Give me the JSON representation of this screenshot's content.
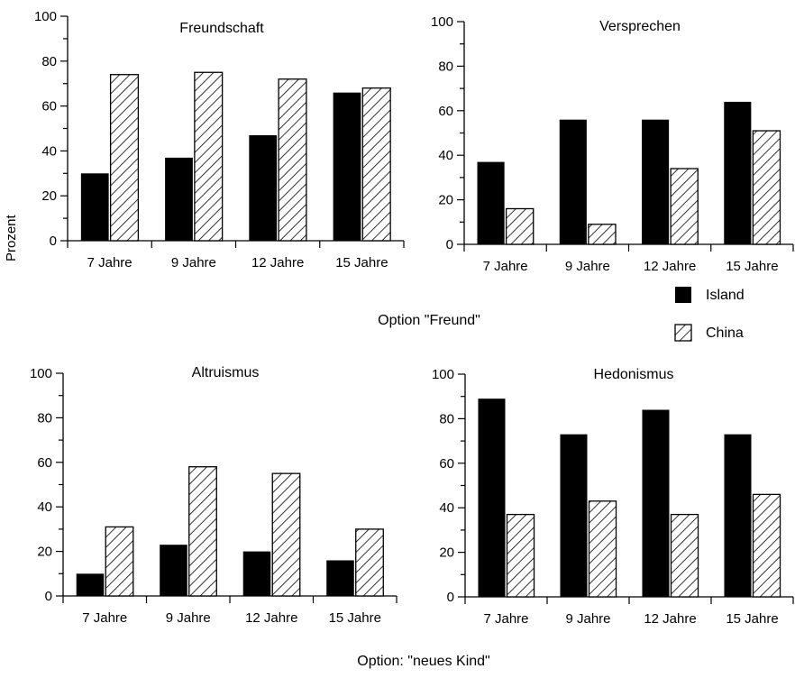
{
  "figure": {
    "ylabel": "Prozent",
    "caption_top": "Option \"Freund\"",
    "caption_bottom": "Option: \"neues Kind\"",
    "legend": [
      {
        "name": "Island",
        "style": "solid",
        "color": "#000000"
      },
      {
        "name": "China",
        "style": "hatch",
        "color": "#000000"
      }
    ]
  },
  "chart_data": [
    {
      "type": "bar",
      "title": "Freundschaft",
      "categories": [
        "7 Jahre",
        "9 Jahre",
        "12 Jahre",
        "15 Jahre"
      ],
      "series": [
        {
          "name": "Island",
          "values": [
            30,
            37,
            47,
            66
          ]
        },
        {
          "name": "China",
          "values": [
            74,
            75,
            72,
            68
          ]
        }
      ],
      "ylim": [
        0,
        100
      ],
      "yticks": [
        0,
        20,
        40,
        60,
        80,
        100
      ],
      "legend": "right",
      "grid": false
    },
    {
      "type": "bar",
      "title": "Versprechen",
      "categories": [
        "7 Jahre",
        "9 Jahre",
        "12 Jahre",
        "15 Jahre"
      ],
      "series": [
        {
          "name": "Island",
          "values": [
            37,
            56,
            56,
            64
          ]
        },
        {
          "name": "China",
          "values": [
            16,
            9,
            34,
            51
          ]
        }
      ],
      "ylim": [
        0,
        100
      ],
      "yticks": [
        0,
        20,
        40,
        60,
        80,
        100
      ],
      "legend": "right",
      "grid": false
    },
    {
      "type": "bar",
      "title": "Altruismus",
      "categories": [
        "7 Jahre",
        "9 Jahre",
        "12 Jahre",
        "15 Jahre"
      ],
      "series": [
        {
          "name": "Island",
          "values": [
            10,
            23,
            20,
            16
          ]
        },
        {
          "name": "China",
          "values": [
            31,
            58,
            55,
            30
          ]
        }
      ],
      "ylim": [
        0,
        100
      ],
      "yticks": [
        0,
        20,
        40,
        60,
        80,
        100
      ],
      "legend": "right",
      "grid": false
    },
    {
      "type": "bar",
      "title": "Hedonismus",
      "categories": [
        "7 Jahre",
        "9 Jahre",
        "12 Jahre",
        "15 Jahre"
      ],
      "series": [
        {
          "name": "Island",
          "values": [
            89,
            73,
            84,
            73
          ]
        },
        {
          "name": "China",
          "values": [
            37,
            43,
            37,
            46
          ]
        }
      ],
      "ylim": [
        0,
        100
      ],
      "yticks": [
        0,
        20,
        40,
        60,
        80,
        100
      ],
      "legend": "right",
      "grid": false
    }
  ]
}
